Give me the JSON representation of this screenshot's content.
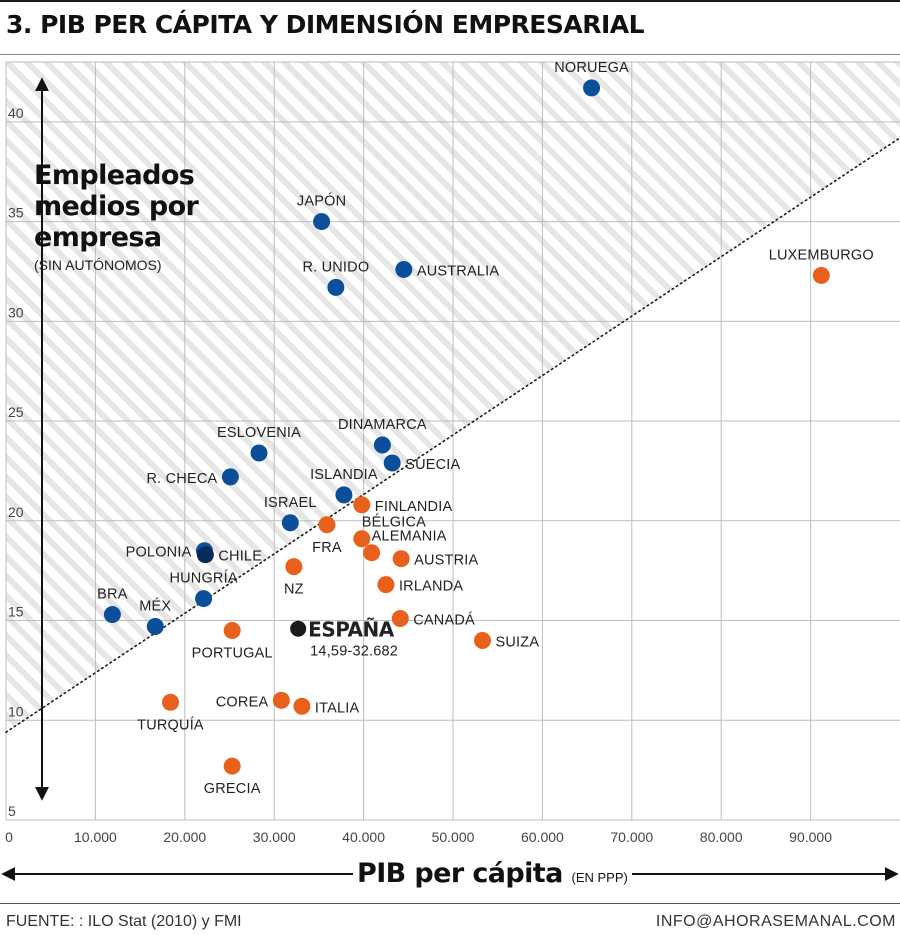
{
  "title": "3. PIB PER CÁPITA Y DIMENSIÓN EMPRESARIAL",
  "footer": {
    "source": "FUENTE: : ILO Stat (2010) y FMI",
    "contact": "INFO@AHORASEMANAL.COM"
  },
  "colors": {
    "blue": "#0b4e9a",
    "orange": "#e8601c",
    "black": "#1a1a1a",
    "grid": "#bdbdbd",
    "hatch": "#e6e6e6"
  },
  "chart_data": {
    "type": "scatter",
    "title": "3. PIB PER CÁPITA Y DIMENSIÓN EMPRESARIAL",
    "ylabel_lines": [
      "Empleados",
      "medios por",
      "empresa"
    ],
    "yunit": "(SIN AUTÓNOMOS)",
    "xlabel": "PIB per cápita",
    "xunit": "(EN PPP)",
    "xlim": [
      0,
      100000
    ],
    "ylim": [
      5,
      43
    ],
    "x_ticks": [
      {
        "value": 0,
        "label": "0"
      },
      {
        "value": 10000,
        "label": "10.000"
      },
      {
        "value": 20000,
        "label": "20.000"
      },
      {
        "value": 30000,
        "label": "30.000"
      },
      {
        "value": 40000,
        "label": "40.000"
      },
      {
        "value": 50000,
        "label": "50.000"
      },
      {
        "value": 60000,
        "label": "60.000"
      },
      {
        "value": 70000,
        "label": "70.000"
      },
      {
        "value": 80000,
        "label": "80.000"
      },
      {
        "value": 90000,
        "label": "90.000"
      }
    ],
    "y_ticks": [
      {
        "value": 5,
        "label": "5"
      },
      {
        "value": 10,
        "label": "10"
      },
      {
        "value": 15,
        "label": "15"
      },
      {
        "value": 20,
        "label": "20"
      },
      {
        "value": 25,
        "label": "25"
      },
      {
        "value": 30,
        "label": "30"
      },
      {
        "value": 35,
        "label": "35"
      },
      {
        "value": 40,
        "label": "40"
      }
    ],
    "grid": true,
    "trendline": {
      "style": "dotted",
      "from": [
        0,
        9.4
      ],
      "to": [
        100000,
        39.2
      ]
    },
    "points": [
      {
        "label": "NORUEGA",
        "x": 65500,
        "y": 41.7,
        "group": "blue",
        "label_pos": "above"
      },
      {
        "label": "JAPÓN",
        "x": 35300,
        "y": 35.0,
        "group": "blue",
        "label_pos": "above"
      },
      {
        "label": "AUSTRALIA",
        "x": 44500,
        "y": 32.6,
        "group": "blue",
        "label_pos": "right"
      },
      {
        "label": "R. UNIDO",
        "x": 36900,
        "y": 31.7,
        "group": "blue",
        "label_pos": "above"
      },
      {
        "label": "LUXEMBURGO",
        "x": 91200,
        "y": 32.3,
        "group": "orange",
        "label_pos": "above"
      },
      {
        "label": "DINAMARCA",
        "x": 42100,
        "y": 23.8,
        "group": "blue",
        "label_pos": "above"
      },
      {
        "label": "SUECIA",
        "x": 43200,
        "y": 22.9,
        "group": "blue",
        "label_pos": "right"
      },
      {
        "label": "ESLOVENIA",
        "x": 28300,
        "y": 23.4,
        "group": "blue",
        "label_pos": "above"
      },
      {
        "label": "R. CHECA",
        "x": 25100,
        "y": 22.2,
        "group": "blue",
        "label_pos": "left"
      },
      {
        "label": "ISLANDIA",
        "x": 37800,
        "y": 21.3,
        "group": "blue",
        "label_pos": "above"
      },
      {
        "label": "FINLANDIA",
        "x": 39800,
        "y": 20.8,
        "group": "orange",
        "label_pos": "right"
      },
      {
        "label": "ISRAEL",
        "x": 31800,
        "y": 19.9,
        "group": "blue",
        "label_pos": "above"
      },
      {
        "label": "FRA",
        "x": 35900,
        "y": 19.8,
        "group": "orange",
        "label_pos": "below"
      },
      {
        "label": "BÉLGICA",
        "x": 39800,
        "y": 19.1,
        "group": "orange",
        "label_pos": "above-right"
      },
      {
        "label": "ALEMANIA",
        "x": 40900,
        "y": 18.4,
        "group": "orange",
        "label_pos": "above-right"
      },
      {
        "label": "AUSTRIA",
        "x": 44200,
        "y": 18.1,
        "group": "orange",
        "label_pos": "right"
      },
      {
        "label": "POLONIA",
        "x": 22200,
        "y": 18.5,
        "group": "blue",
        "label_pos": "left"
      },
      {
        "label": "CHILE",
        "x": 22300,
        "y": 18.3,
        "group": "navy",
        "label_pos": "right"
      },
      {
        "label": "NZ",
        "x": 32200,
        "y": 17.7,
        "group": "orange",
        "label_pos": "below"
      },
      {
        "label": "IRLANDA",
        "x": 42500,
        "y": 16.8,
        "group": "orange",
        "label_pos": "right"
      },
      {
        "label": "HUNGRÍA",
        "x": 22100,
        "y": 16.1,
        "group": "blue",
        "label_pos": "above"
      },
      {
        "label": "BRA",
        "x": 11900,
        "y": 15.3,
        "group": "blue",
        "label_pos": "above"
      },
      {
        "label": "MÉX",
        "x": 16700,
        "y": 14.7,
        "group": "blue",
        "label_pos": "above"
      },
      {
        "label": "CANADÁ",
        "x": 44100,
        "y": 15.1,
        "group": "orange",
        "label_pos": "right"
      },
      {
        "label": "PORTUGAL",
        "x": 25300,
        "y": 14.5,
        "group": "orange",
        "label_pos": "below"
      },
      {
        "label": "ESPAÑA",
        "x": 32682,
        "y": 14.59,
        "group": "black",
        "label_pos": "right-bold",
        "sublabel": "14,59-32.682"
      },
      {
        "label": "SUIZA",
        "x": 53300,
        "y": 14.0,
        "group": "orange",
        "label_pos": "right"
      },
      {
        "label": "TURQUÍA",
        "x": 18400,
        "y": 10.9,
        "group": "orange",
        "label_pos": "below"
      },
      {
        "label": "COREA",
        "x": 30800,
        "y": 11.0,
        "group": "orange",
        "label_pos": "left"
      },
      {
        "label": "ITALIA",
        "x": 33100,
        "y": 10.7,
        "group": "orange",
        "label_pos": "right"
      },
      {
        "label": "GRECIA",
        "x": 25300,
        "y": 7.7,
        "group": "orange",
        "label_pos": "below"
      }
    ]
  }
}
